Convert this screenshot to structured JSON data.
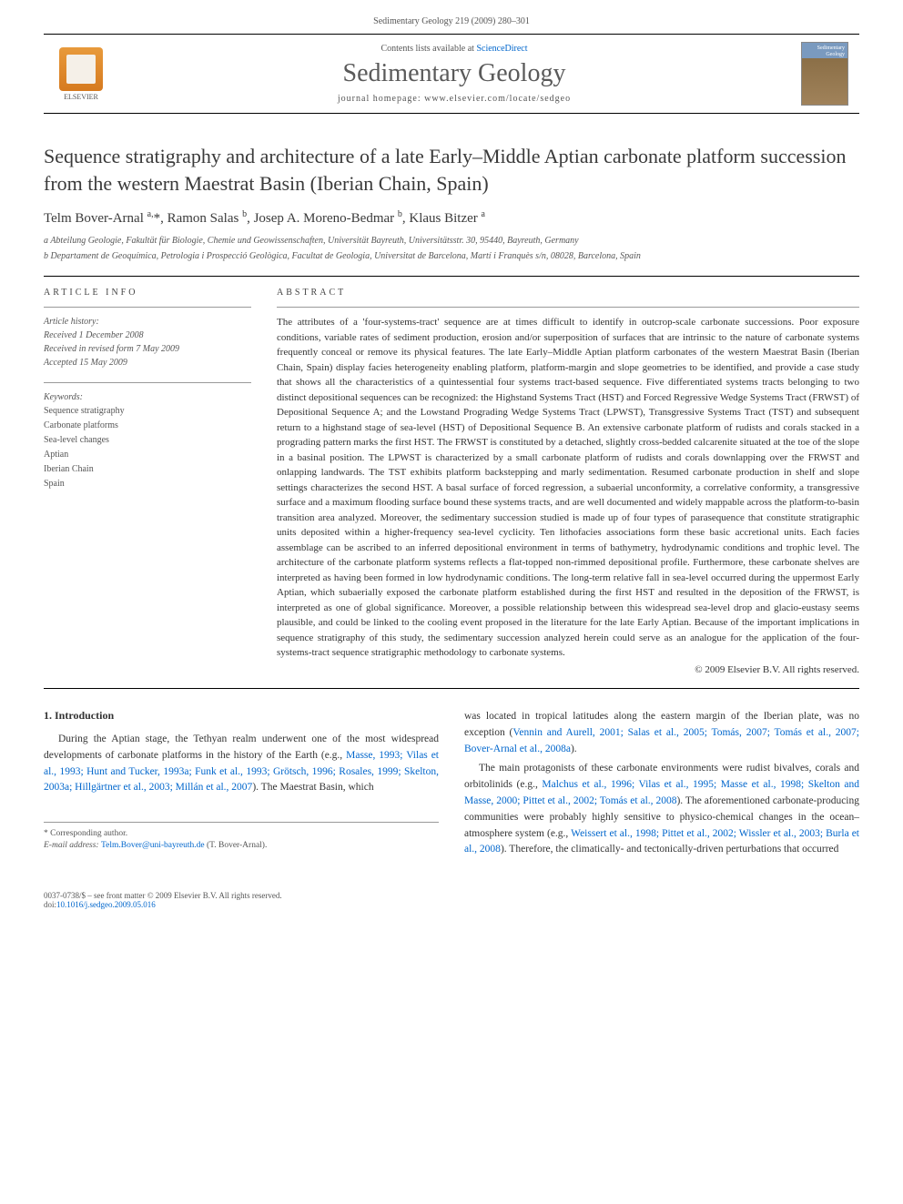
{
  "header": {
    "journal_ref": "Sedimentary Geology 219 (2009) 280–301"
  },
  "banner": {
    "contents_prefix": "Contents lists available at ",
    "contents_link": "ScienceDirect",
    "journal_name": "Sedimentary Geology",
    "homepage_prefix": "journal homepage: ",
    "homepage_url": "www.elsevier.com/locate/sedgeo",
    "publisher": "ELSEVIER",
    "cover_text": "Sedimentary Geology"
  },
  "article": {
    "title": "Sequence stratigraphy and architecture of a late Early–Middle Aptian carbonate platform succession from the western Maestrat Basin (Iberian Chain, Spain)",
    "authors_html": "Telm Bover-Arnal <sup>a,</sup>*, Ramon Salas <sup>b</sup>, Josep A. Moreno-Bedmar <sup>b</sup>, Klaus Bitzer <sup>a</sup>",
    "affiliations": [
      "a Abteilung Geologie, Fakultät für Biologie, Chemie und Geowissenschaften, Universität Bayreuth, Universitätsstr. 30, 95440, Bayreuth, Germany",
      "b Departament de Geoquímica, Petrologia i Prospecció Geològica, Facultat de Geologia, Universitat de Barcelona, Martí i Franquès s/n, 08028, Barcelona, Spain"
    ]
  },
  "info": {
    "section_label": "ARTICLE INFO",
    "history_label": "Article history:",
    "received": "Received 1 December 2008",
    "revised": "Received in revised form 7 May 2009",
    "accepted": "Accepted 15 May 2009",
    "keywords_label": "Keywords:",
    "keywords": [
      "Sequence stratigraphy",
      "Carbonate platforms",
      "Sea-level changes",
      "Aptian",
      "Iberian Chain",
      "Spain"
    ]
  },
  "abstract": {
    "section_label": "ABSTRACT",
    "text": "The attributes of a 'four-systems-tract' sequence are at times difficult to identify in outcrop-scale carbonate successions. Poor exposure conditions, variable rates of sediment production, erosion and/or superposition of surfaces that are intrinsic to the nature of carbonate systems frequently conceal or remove its physical features. The late Early–Middle Aptian platform carbonates of the western Maestrat Basin (Iberian Chain, Spain) display facies heterogeneity enabling platform, platform-margin and slope geometries to be identified, and provide a case study that shows all the characteristics of a quintessential four systems tract-based sequence. Five differentiated systems tracts belonging to two distinct depositional sequences can be recognized: the Highstand Systems Tract (HST) and Forced Regressive Wedge Systems Tract (FRWST) of Depositional Sequence A; and the Lowstand Prograding Wedge Systems Tract (LPWST), Transgressive Systems Tract (TST) and subsequent return to a highstand stage of sea-level (HST) of Depositional Sequence B. An extensive carbonate platform of rudists and corals stacked in a prograding pattern marks the first HST. The FRWST is constituted by a detached, slightly cross-bedded calcarenite situated at the toe of the slope in a basinal position. The LPWST is characterized by a small carbonate platform of rudists and corals downlapping over the FRWST and onlapping landwards. The TST exhibits platform backstepping and marly sedimentation. Resumed carbonate production in shelf and slope settings characterizes the second HST. A basal surface of forced regression, a subaerial unconformity, a correlative conformity, a transgressive surface and a maximum flooding surface bound these systems tracts, and are well documented and widely mappable across the platform-to-basin transition area analyzed. Moreover, the sedimentary succession studied is made up of four types of parasequence that constitute stratigraphic units deposited within a higher-frequency sea-level cyclicity. Ten lithofacies associations form these basic accretional units. Each facies assemblage can be ascribed to an inferred depositional environment in terms of bathymetry, hydrodynamic conditions and trophic level. The architecture of the carbonate platform systems reflects a flat-topped non-rimmed depositional profile. Furthermore, these carbonate shelves are interpreted as having been formed in low hydrodynamic conditions. The long-term relative fall in sea-level occurred during the uppermost Early Aptian, which subaerially exposed the carbonate platform established during the first HST and resulted in the deposition of the FRWST, is interpreted as one of global significance. Moreover, a possible relationship between this widespread sea-level drop and glacio-eustasy seems plausible, and could be linked to the cooling event proposed in the literature for the late Early Aptian. Because of the important implications in sequence stratigraphy of this study, the sedimentary succession analyzed herein could serve as an analogue for the application of the four-systems-tract sequence stratigraphic methodology to carbonate systems.",
    "copyright": "© 2009 Elsevier B.V. All rights reserved."
  },
  "intro": {
    "heading": "1. Introduction",
    "para1_pre": "During the Aptian stage, the Tethyan realm underwent one of the most widespread developments of carbonate platforms in the history of the Earth (e.g., ",
    "para1_refs": "Masse, 1993; Vilas et al., 1993; Hunt and Tucker, 1993a; Funk et al., 1993; Grötsch, 1996; Rosales, 1999; Skelton, 2003a; Hillgärtner et al., 2003; Millán et al., 2007",
    "para1_post": "). The Maestrat Basin, which",
    "para2_pre": "was located in tropical latitudes along the eastern margin of the Iberian plate, was no exception (",
    "para2_refs": "Vennin and Aurell, 2001; Salas et al., 2005; Tomás, 2007; Tomás et al., 2007; Bover-Arnal et al., 2008a",
    "para2_post": ").",
    "para3_pre": "The main protagonists of these carbonate environments were rudist bivalves, corals and orbitolinids (e.g., ",
    "para3_refs": "Malchus et al., 1996; Vilas et al., 1995; Masse et al., 1998; Skelton and Masse, 2000; Pittet et al., 2002; Tomás et al., 2008",
    "para3_mid": "). The aforementioned carbonate-producing communities were probably highly sensitive to physico-chemical changes in the ocean–atmosphere system (e.g., ",
    "para3_refs2": "Weissert et al., 1998; Pittet et al., 2002; Wissler et al., 2003; Burla et al., 2008",
    "para3_post": "). Therefore, the climatically- and tectonically-driven perturbations that occurred"
  },
  "footnote": {
    "corresponding_label": "* Corresponding author.",
    "email_label": "E-mail address: ",
    "email": "Telm.Bover@uni-bayreuth.de",
    "email_name": " (T. Bover-Arnal)."
  },
  "footer": {
    "issn_line": "0037-0738/$ – see front matter © 2009 Elsevier B.V. All rights reserved.",
    "doi_label": "doi:",
    "doi": "10.1016/j.sedgeo.2009.05.016"
  },
  "colors": {
    "link": "#0066cc",
    "text": "#333333",
    "muted": "#555555",
    "rule": "#000000"
  }
}
